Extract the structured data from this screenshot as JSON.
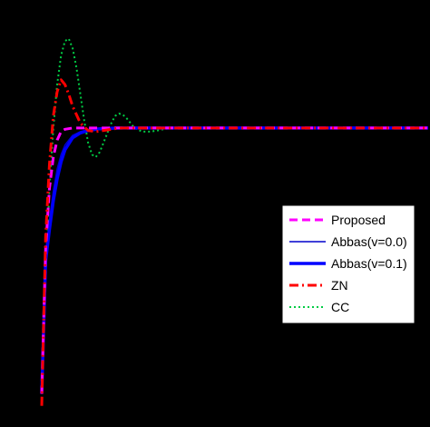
{
  "chart_data": {
    "type": "line",
    "title": "",
    "xlabel": "",
    "ylabel": "",
    "grid": false,
    "legend_position": "lower-right",
    "background": "#000000",
    "xlim": [
      0,
      10
    ],
    "ylim": [
      -0.2,
      1.5
    ],
    "series": [
      {
        "name": "Proposed",
        "color": "#ff00ff",
        "style": "dashed",
        "x": [
          0.0,
          0.1,
          0.2,
          0.3,
          0.4,
          0.5,
          0.6,
          0.8,
          1.0,
          1.5,
          2.0,
          3.0,
          5.0,
          10.0
        ],
        "y": [
          -0.1,
          0.5,
          0.75,
          0.88,
          0.95,
          0.985,
          0.995,
          1.0,
          1.0,
          1.0,
          1.0,
          1.0,
          1.0,
          1.0
        ]
      },
      {
        "name": "Abbas(v=0.0)",
        "color": "#0000cc",
        "style": "solid-thin",
        "x": [
          0.0,
          0.1,
          0.2,
          0.3,
          0.4,
          0.5,
          0.6,
          0.8,
          1.0,
          1.2,
          1.5,
          2.0,
          3.0,
          5.0,
          10.0
        ],
        "y": [
          -0.1,
          0.48,
          0.62,
          0.74,
          0.83,
          0.89,
          0.93,
          0.97,
          0.985,
          0.993,
          0.998,
          1.0,
          1.0,
          1.0,
          1.0
        ]
      },
      {
        "name": "Abbas(v=0.1)",
        "color": "#0000ff",
        "style": "solid-thick",
        "x": [
          0.0,
          0.1,
          0.2,
          0.3,
          0.4,
          0.5,
          0.6,
          0.8,
          1.0,
          1.2,
          1.5,
          2.0,
          3.0,
          5.0,
          10.0
        ],
        "y": [
          -0.1,
          0.45,
          0.58,
          0.7,
          0.79,
          0.86,
          0.91,
          0.96,
          0.98,
          0.99,
          0.997,
          1.0,
          1.0,
          1.0,
          1.0
        ]
      },
      {
        "name": "ZN",
        "color": "#ff0000",
        "style": "dash-dot",
        "x": [
          0.0,
          0.1,
          0.2,
          0.3,
          0.4,
          0.5,
          0.6,
          0.7,
          0.8,
          1.0,
          1.2,
          1.4,
          1.6,
          1.8,
          2.0,
          2.4,
          3.0,
          4.0,
          10.0
        ],
        "y": [
          -0.15,
          0.55,
          0.85,
          1.05,
          1.15,
          1.2,
          1.18,
          1.14,
          1.09,
          1.02,
          0.99,
          0.985,
          0.99,
          0.995,
          1.0,
          1.0,
          1.0,
          1.0,
          1.0
        ]
      },
      {
        "name": "CC",
        "color": "#00cc44",
        "style": "dotted",
        "x": [
          0.0,
          0.1,
          0.2,
          0.3,
          0.4,
          0.5,
          0.6,
          0.7,
          0.8,
          0.9,
          1.0,
          1.1,
          1.2,
          1.3,
          1.4,
          1.5,
          1.6,
          1.7,
          1.8,
          1.9,
          2.0,
          2.1,
          2.2,
          2.3,
          2.4,
          2.6,
          2.8,
          3.0,
          3.2,
          3.4,
          3.6,
          3.8,
          4.0,
          5.0,
          10.0
        ],
        "y": [
          -0.1,
          0.4,
          0.75,
          1.0,
          1.18,
          1.3,
          1.36,
          1.37,
          1.33,
          1.25,
          1.14,
          1.03,
          0.94,
          0.89,
          0.88,
          0.9,
          0.94,
          0.98,
          1.02,
          1.05,
          1.06,
          1.055,
          1.04,
          1.02,
          1.0,
          0.985,
          0.985,
          0.99,
          0.997,
          1.0,
          1.0,
          1.0,
          1.0,
          1.0,
          1.0
        ]
      }
    ]
  }
}
